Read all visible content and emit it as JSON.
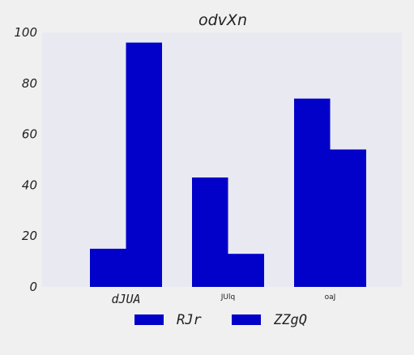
{
  "chart_data": {
    "type": "bar",
    "title": "odvXn",
    "xlabel": "",
    "ylabel": "",
    "categories": [
      "dJUA",
      "JUlq",
      "oaJ"
    ],
    "series": [
      {
        "name": "RJr",
        "values": [
          15,
          43,
          74
        ]
      },
      {
        "name": "ZZgQ",
        "values": [
          96,
          13,
          54
        ]
      }
    ],
    "ylim": [
      0,
      100
    ],
    "yticks": [
      "0",
      "20",
      "40",
      "60",
      "80",
      "100"
    ],
    "grid": false,
    "legend_position": "bottom-center",
    "colors": {
      "plot_background": "#e9e9f2",
      "page_background": "#f0f0f0",
      "series": [
        "#0101c9",
        "#0101c9"
      ]
    }
  }
}
